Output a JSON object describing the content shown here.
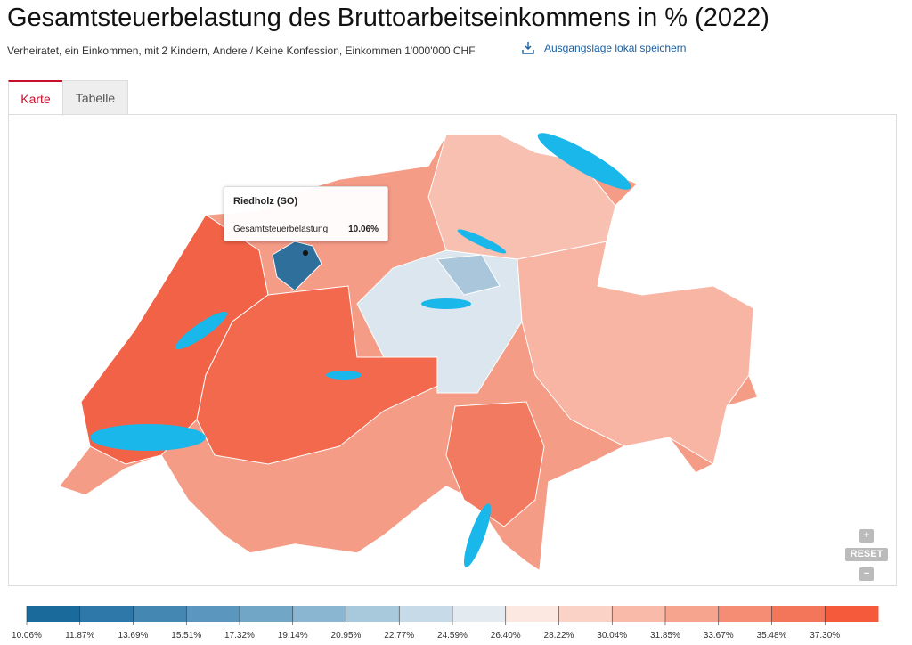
{
  "header": {
    "title": "Gesamtsteuerbelastung des Bruttoarbeitseinkommens in % (2022)",
    "subtitle": "Verheiratet, ein Einkommen, mit 2 Kindern, Andere / Keine Konfession, Einkommen 1'000'000 CHF",
    "save_link": "Ausgangslage lokal speichern"
  },
  "tabs": [
    "Karte",
    "Tabelle"
  ],
  "tooltip": {
    "title": "Riedholz (SO)",
    "label": "Gesamtsteuerbelastung",
    "value": "10.06%"
  },
  "zoom": {
    "plus": "+",
    "reset": "RESET",
    "minus": "−"
  },
  "legend": {
    "ticks": [
      "10.06%",
      "11.87%",
      "13.69%",
      "15.51%",
      "17.32%",
      "19.14%",
      "20.95%",
      "22.77%",
      "24.59%",
      "26.40%",
      "28.22%",
      "30.04%",
      "31.85%",
      "33.67%",
      "35.48%",
      "37.30%"
    ],
    "colors": [
      "#1b6a9c",
      "#2d78a8",
      "#4487b3",
      "#5a96bd",
      "#72a6c7",
      "#8ab6d1",
      "#a8c8dc",
      "#c6dbe7",
      "#e3ebf0",
      "#fde8e1",
      "#fbd2c6",
      "#f9baa9",
      "#f7a48e",
      "#f58d74",
      "#f4765a",
      "#f55a3b"
    ]
  }
}
